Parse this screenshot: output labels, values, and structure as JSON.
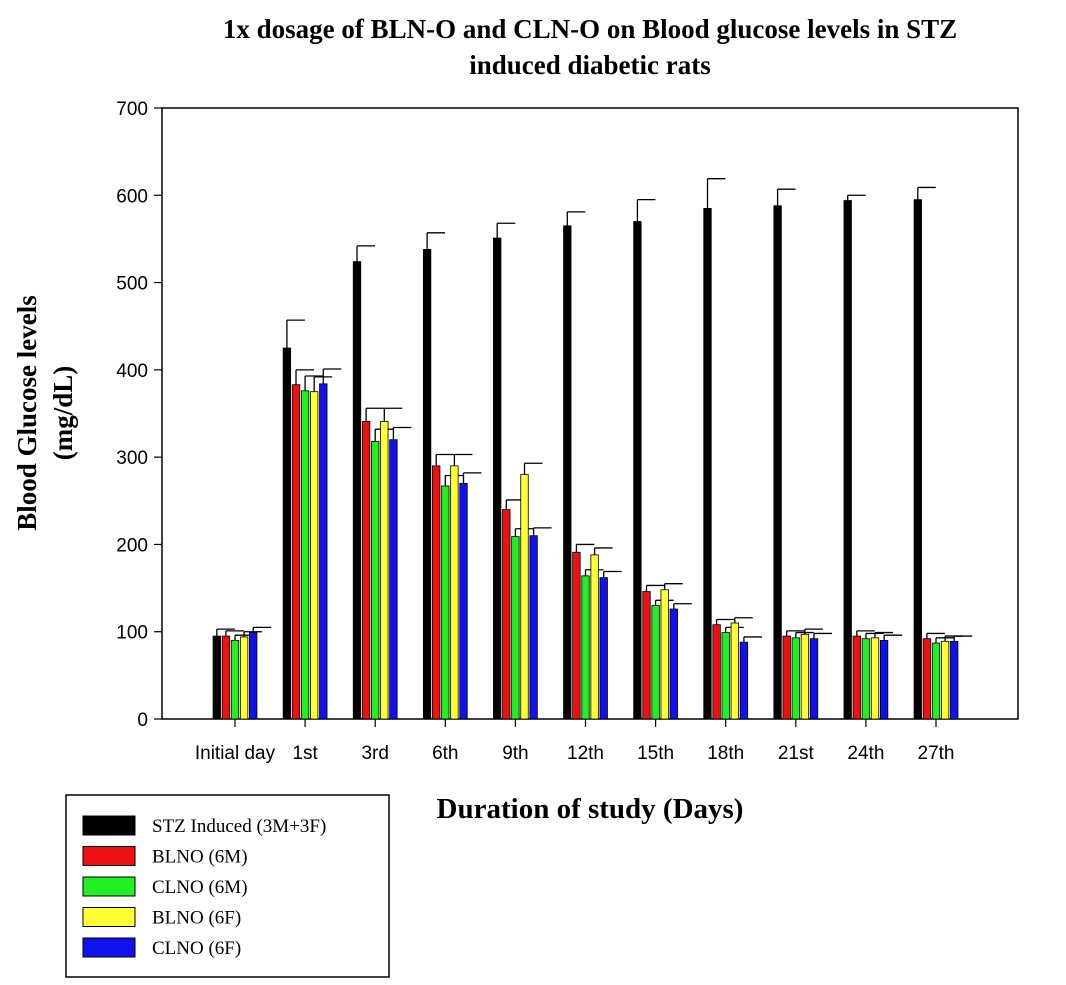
{
  "chart_data": {
    "type": "bar",
    "title_line1": "1x dosage of BLN-O and CLN-O on Blood glucose levels in STZ",
    "title_line2": "induced diabetic rats",
    "xlabel": "Duration of study (Days)",
    "ylabel_line1": "Blood Glucose levels",
    "ylabel_line2": "(mg/dL)",
    "ylim": [
      0,
      700
    ],
    "yticks": [
      0,
      100,
      200,
      300,
      400,
      500,
      600,
      700
    ],
    "grid": false,
    "legend_position": "bottom-left",
    "categories": [
      "Initial day",
      "1st",
      "3rd",
      "6th",
      "9th",
      "12th",
      "15th",
      "18th",
      "21st",
      "24th",
      "27th"
    ],
    "series": [
      {
        "name": "STZ Induced (3M+3F)",
        "color": "#000000",
        "values": [
          95,
          425,
          524,
          538,
          551,
          565,
          570,
          585,
          588,
          594,
          595
        ],
        "errors": [
          8,
          32,
          18,
          19,
          17,
          16,
          25,
          34,
          19,
          6,
          14
        ]
      },
      {
        "name": "BLNO (6M)",
        "color": "#ee1111",
        "values": [
          95,
          383,
          341,
          290,
          240,
          191,
          146,
          108,
          95,
          95,
          92
        ]
      },
      {
        "name": "CLNO (6M)",
        "color": "#22ee22",
        "values": [
          90,
          376,
          318,
          267,
          209,
          164,
          130,
          99,
          93,
          92,
          87
        ]
      },
      {
        "name": "BLNO (6F)",
        "color": "#ffff33",
        "values": [
          94,
          375,
          341,
          290,
          280,
          188,
          148,
          110,
          97,
          93,
          89
        ]
      },
      {
        "name": "CLNO (6F)",
        "color": "#1111ee",
        "values": [
          99,
          384,
          320,
          270,
          210,
          162,
          126,
          88,
          92,
          90,
          89
        ]
      }
    ]
  }
}
